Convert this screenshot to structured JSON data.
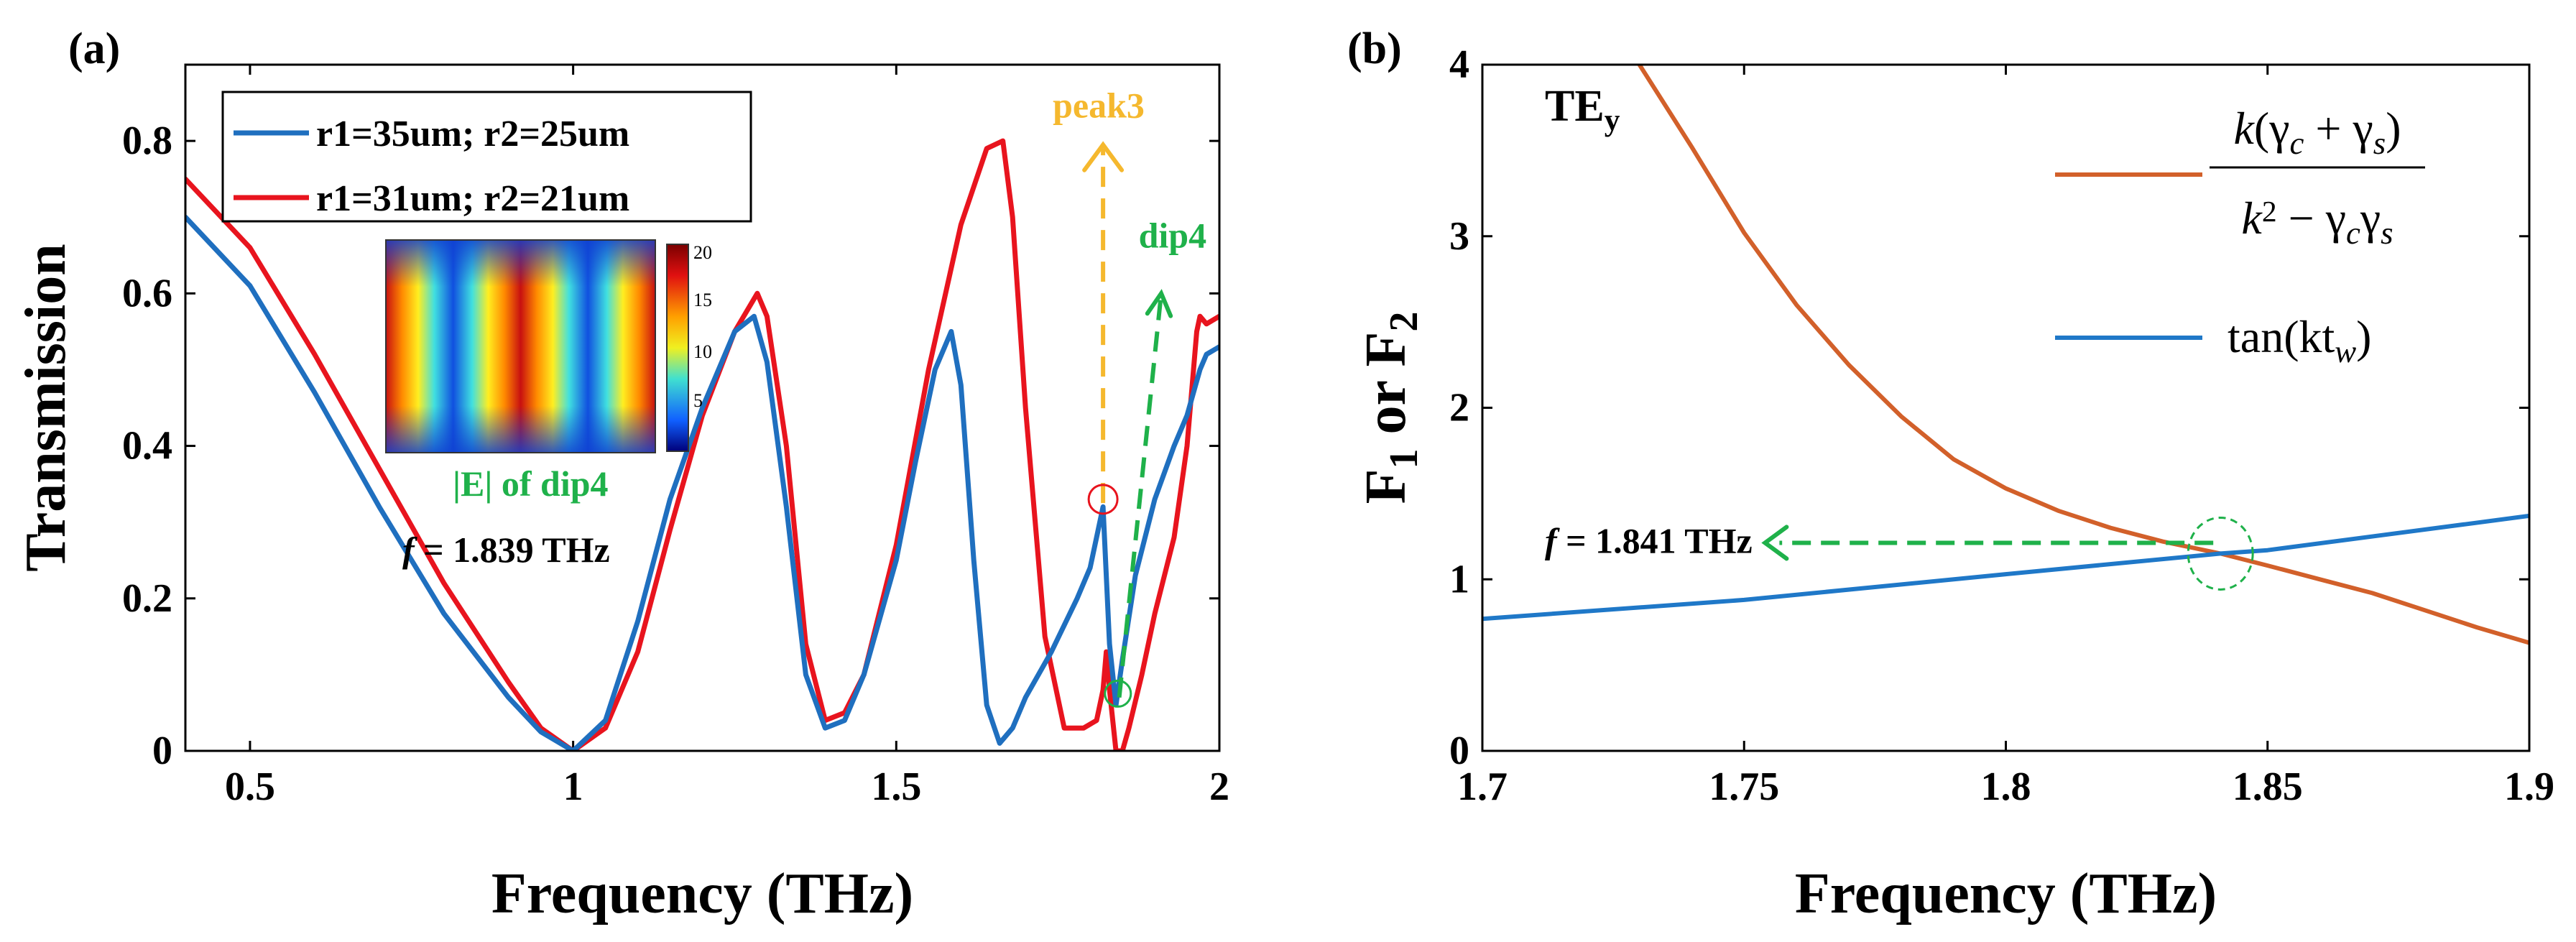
{
  "panel_a_label": "(a)",
  "panel_b_label": "(b)",
  "chart_data": [
    {
      "type": "line",
      "xlabel": "Frequency (THz)",
      "ylabel": "Transmission",
      "xlim": [
        0.4,
        2.0
      ],
      "ylim": [
        0,
        0.9
      ],
      "xticks": [
        0.5,
        1,
        1.5,
        2
      ],
      "yticks": [
        0,
        0.2,
        0.4,
        0.6,
        0.8
      ],
      "xtick_labels": [
        "0.5",
        "1",
        "1.5",
        "2"
      ],
      "ytick_labels": [
        "0",
        "0.2",
        "0.4",
        "0.6",
        "0.8"
      ],
      "series": [
        {
          "name": "r1=35um; r2=25um",
          "color": "#1f6fbf",
          "x": [
            0.4,
            0.5,
            0.6,
            0.7,
            0.8,
            0.9,
            0.95,
            1.0,
            1.05,
            1.1,
            1.15,
            1.2,
            1.25,
            1.28,
            1.3,
            1.33,
            1.36,
            1.39,
            1.42,
            1.45,
            1.5,
            1.53,
            1.56,
            1.585,
            1.6,
            1.62,
            1.64,
            1.66,
            1.68,
            1.7,
            1.74,
            1.78,
            1.8,
            1.81,
            1.82,
            1.83,
            1.84,
            1.85,
            1.87,
            1.9,
            1.93,
            1.95,
            1.97,
            1.98,
            2.0
          ],
          "y": [
            0.7,
            0.61,
            0.47,
            0.32,
            0.18,
            0.07,
            0.025,
            0.0,
            0.04,
            0.17,
            0.33,
            0.45,
            0.55,
            0.57,
            0.51,
            0.32,
            0.1,
            0.03,
            0.04,
            0.1,
            0.25,
            0.38,
            0.5,
            0.55,
            0.48,
            0.25,
            0.06,
            0.01,
            0.03,
            0.07,
            0.13,
            0.2,
            0.24,
            0.28,
            0.32,
            0.14,
            0.06,
            0.12,
            0.23,
            0.33,
            0.4,
            0.44,
            0.5,
            0.52,
            0.53
          ]
        },
        {
          "name": "r1=31um; r2=21um",
          "color": "#e8141e",
          "x": [
            0.4,
            0.5,
            0.6,
            0.7,
            0.8,
            0.9,
            0.95,
            1.0,
            1.05,
            1.1,
            1.15,
            1.2,
            1.25,
            1.285,
            1.3,
            1.33,
            1.36,
            1.39,
            1.42,
            1.45,
            1.5,
            1.55,
            1.6,
            1.64,
            1.665,
            1.68,
            1.7,
            1.73,
            1.76,
            1.79,
            1.81,
            1.82,
            1.825,
            1.83,
            1.84,
            1.85,
            1.86,
            1.88,
            1.9,
            1.93,
            1.95,
            1.96,
            1.965,
            1.97,
            1.98,
            2.0
          ],
          "y": [
            0.75,
            0.66,
            0.52,
            0.37,
            0.22,
            0.09,
            0.03,
            0.0,
            0.03,
            0.13,
            0.29,
            0.44,
            0.55,
            0.6,
            0.57,
            0.4,
            0.14,
            0.04,
            0.05,
            0.1,
            0.27,
            0.5,
            0.69,
            0.79,
            0.8,
            0.7,
            0.45,
            0.15,
            0.03,
            0.03,
            0.04,
            0.08,
            0.13,
            0.08,
            0.0,
            0.0,
            0.03,
            0.1,
            0.18,
            0.28,
            0.4,
            0.5,
            0.55,
            0.57,
            0.56,
            0.57
          ]
        }
      ],
      "legend": "top-left",
      "annotations": {
        "peak3": "peak3",
        "dip4": "dip4",
        "inset_caption": "|E| of dip4",
        "freq_label_f": "f",
        "freq_label_value": "= 1.839 THz",
        "inset_colorbar_ticks": [
          "20",
          "15",
          "10",
          "5"
        ],
        "peak3_color": "#f5b82e",
        "dip4_color": "#1fb14a"
      }
    },
    {
      "type": "line",
      "xlabel": "Frequency (THz)",
      "ylabel": "F1 or F2",
      "ylabel_F": "F",
      "ylabel_sub1": "1",
      "ylabel_or": "or",
      "ylabel_sub2": "2",
      "xlim": [
        1.7,
        1.9
      ],
      "ylim": [
        0,
        4
      ],
      "xticks": [
        1.7,
        1.75,
        1.8,
        1.85,
        1.9
      ],
      "yticks": [
        0,
        1,
        2,
        3,
        4
      ],
      "xtick_labels": [
        "1.7",
        "1.75",
        "1.8",
        "1.85",
        "1.9"
      ],
      "ytick_labels": [
        "0",
        "1",
        "2",
        "3",
        "4"
      ],
      "title_main": "TE",
      "title_sub": "y",
      "series": [
        {
          "name": "k(γc + γs) / (k² − γc γs)",
          "color": "#d2602a",
          "x": [
            1.73,
            1.74,
            1.75,
            1.76,
            1.77,
            1.78,
            1.79,
            1.8,
            1.81,
            1.82,
            1.83,
            1.841,
            1.85,
            1.86,
            1.87,
            1.88,
            1.89,
            1.9
          ],
          "y": [
            4.0,
            3.52,
            3.02,
            2.6,
            2.25,
            1.95,
            1.7,
            1.53,
            1.4,
            1.3,
            1.22,
            1.15,
            1.08,
            1.0,
            0.92,
            0.82,
            0.72,
            0.63
          ]
        },
        {
          "name": "tan(ktw)",
          "color": "#1f78c8",
          "x": [
            1.7,
            1.75,
            1.8,
            1.841,
            1.85,
            1.9
          ],
          "y": [
            0.77,
            0.88,
            1.03,
            1.15,
            1.17,
            1.37
          ]
        }
      ],
      "legend_num": "k(γc + γs)",
      "legend_num_k": "k",
      "legend_num_open": "(γ",
      "legend_num_c": "c",
      "legend_num_plus": " + γ",
      "legend_num_s": "s",
      "legend_num_close": ")",
      "legend_den_k": "k",
      "legend_den_sq": "2",
      "legend_den_minus": " − γ",
      "legend_den_c": "c",
      "legend_den_g": "γ",
      "legend_den_s": "s",
      "legend_tan": "tan(kt",
      "legend_tan_sub": "w",
      "legend_tan_close": ")",
      "intersection": {
        "x": 1.841,
        "y": 1.15
      },
      "freq_label_f": "f",
      "freq_label_value": "= 1.841 THz",
      "arrow_color": "#1fb14a"
    }
  ]
}
